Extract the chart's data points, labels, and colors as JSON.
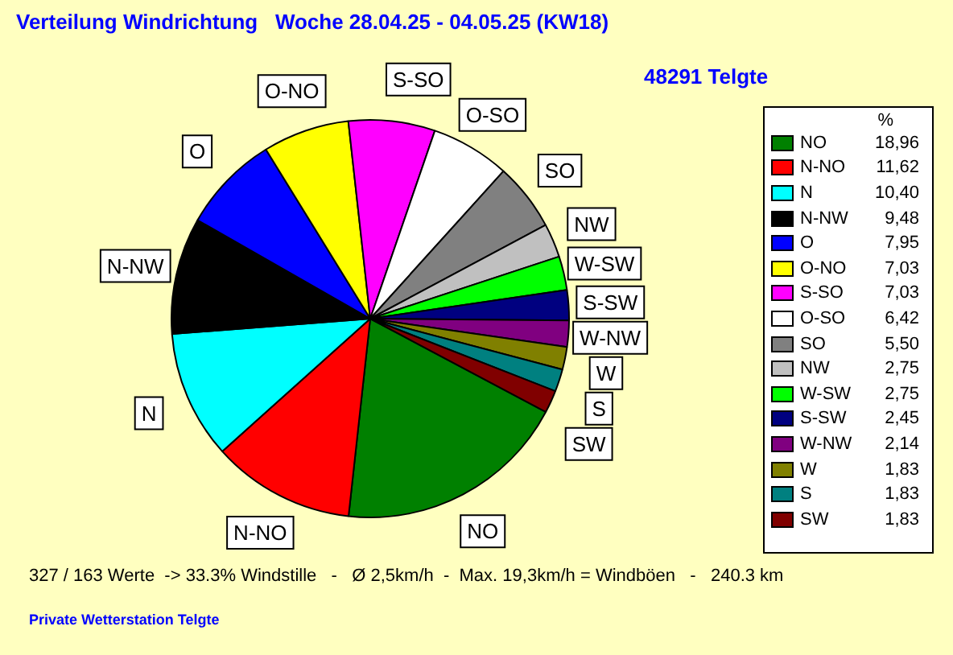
{
  "chart_data": {
    "type": "pie",
    "title": "Verteilung Windrichtung   Woche 28.04.25 - 04.05.25 (KW18)",
    "subtitle": "48291 Telgte",
    "legend_title": "%",
    "categories": [
      "NO",
      "N-NO",
      "N",
      "N-NW",
      "O",
      "O-NO",
      "S-SO",
      "O-SO",
      "SO",
      "NW",
      "W-SW",
      "S-SW",
      "W-NW",
      "W",
      "S",
      "SW"
    ],
    "values": [
      18.96,
      11.62,
      10.4,
      9.48,
      7.95,
      7.03,
      7.03,
      6.42,
      5.5,
      2.75,
      2.75,
      2.45,
      2.14,
      1.83,
      1.83,
      1.83
    ],
    "colors": [
      "#008000",
      "#ff0000",
      "#00ffff",
      "#000000",
      "#0000ff",
      "#ffff00",
      "#ff00ff",
      "#ffffff",
      "#808080",
      "#c0c0c0",
      "#00ff00",
      "#000080",
      "#800080",
      "#808000",
      "#008080",
      "#800000"
    ],
    "value_labels": [
      "18,96",
      "11,62",
      "10,40",
      "9,48",
      "7,95",
      "7,03",
      "7,03",
      "6,42",
      "5,50",
      "2,75",
      "2,75",
      "2,45",
      "2,14",
      "1,83",
      "1,83",
      "1,83"
    ],
    "legend": "right",
    "annotations": [
      "327 / 163 Werte  -> 33.3% Windstille   -   Ø 2,5km/h  -  Max. 19,3km/h = Windböen   -   240.3 km",
      "Private Wetterstation Telgte"
    ]
  }
}
